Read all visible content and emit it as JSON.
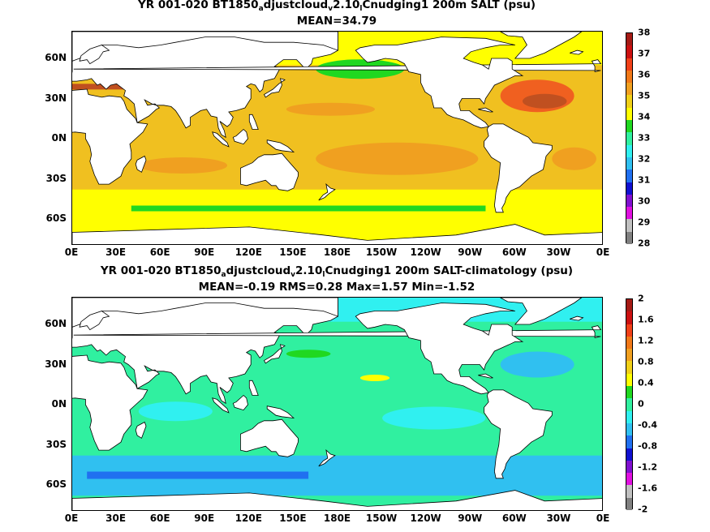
{
  "panels": [
    {
      "title_parts": {
        "a": "YR 001-020 BT1850",
        "b": "a",
        "c": "djustcloud",
        "d": "v",
        "e": "2.10",
        "f": "l",
        "g": "Cnudging1 200m SALT (psu)"
      },
      "stats": "MEAN=34.79",
      "colorbar": {
        "labels": [
          "38",
          "37",
          "36",
          "35",
          "34",
          "33",
          "32",
          "31",
          "30",
          "29",
          "28"
        ],
        "colors": [
          "#a51a14",
          "#cc1010",
          "#f04018",
          "#f07818",
          "#f0a020",
          "#f0d018",
          "#ffff00",
          "#20d820",
          "#30f0a0",
          "#30f0f0",
          "#30c0f0",
          "#2070f0",
          "#1010d0",
          "#8010d0",
          "#e010e0",
          "#c0c0c0",
          "#808080"
        ]
      },
      "map_colors": {
        "ocean_base": "#f0c020",
        "warm": "#f0a020",
        "hot": "#f06020",
        "very_hot": "#c05020",
        "fresh": "#ffff00",
        "very_fresh": "#20d820",
        "land": "#ffffff"
      }
    },
    {
      "title_parts": {
        "a": "YR 001-020 BT1850",
        "b": "a",
        "c": "djustcloud",
        "d": "v",
        "e": "2.10",
        "f": "l",
        "g": "Cnudging1 200m SALT-climatology (psu)"
      },
      "stats": "MEAN=-0.19   RMS=0.28   Max=1.57   Min=-1.52",
      "colorbar": {
        "labels": [
          "2",
          "1.6",
          "1.2",
          "0.8",
          "0.4",
          "0",
          "-0.4",
          "-0.8",
          "-1.2",
          "-1.6",
          "-2"
        ],
        "colors": [
          "#a51a14",
          "#cc1010",
          "#f04018",
          "#f07818",
          "#f0a020",
          "#f0d018",
          "#ffff00",
          "#20d820",
          "#30f0a0",
          "#30f0f0",
          "#30c0f0",
          "#2070f0",
          "#1010d0",
          "#8010d0",
          "#e010e0",
          "#c0c0c0",
          "#808080"
        ]
      },
      "map_colors": {
        "ocean_base": "#30f0a0",
        "warm": "#30f0f0",
        "hot": "#30c0f0",
        "very_hot": "#2070f0",
        "fresh": "#20d820",
        "very_fresh": "#ffff00",
        "land": "#ffffff"
      }
    }
  ],
  "lon_labels": [
    "0E",
    "30E",
    "60E",
    "90E",
    "120E",
    "150E",
    "180E",
    "150W",
    "120W",
    "90W",
    "60W",
    "30W",
    "0E"
  ],
  "lat_labels": [
    "60N",
    "30N",
    "0N",
    "30S",
    "60S"
  ]
}
